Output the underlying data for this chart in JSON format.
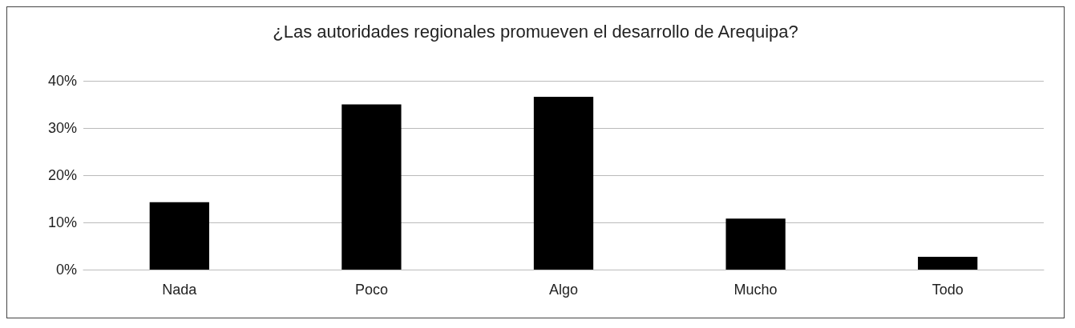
{
  "chart_data": {
    "type": "bar",
    "title": "¿Las autoridades regionales promueven el desarrollo de Arequipa?",
    "categories": [
      "Nada",
      "Poco",
      "Algo",
      "Mucho",
      "Todo"
    ],
    "values": [
      14.3,
      35.0,
      36.6,
      10.8,
      2.7
    ],
    "color": "#000000",
    "ylim": [
      0,
      40
    ],
    "yticks": [
      {
        "value": 0,
        "label": "0%"
      },
      {
        "value": 10,
        "label": "10%"
      },
      {
        "value": 20,
        "label": "20%"
      },
      {
        "value": 30,
        "label": "30%"
      },
      {
        "value": 40,
        "label": "40%"
      }
    ],
    "grid": "y"
  }
}
